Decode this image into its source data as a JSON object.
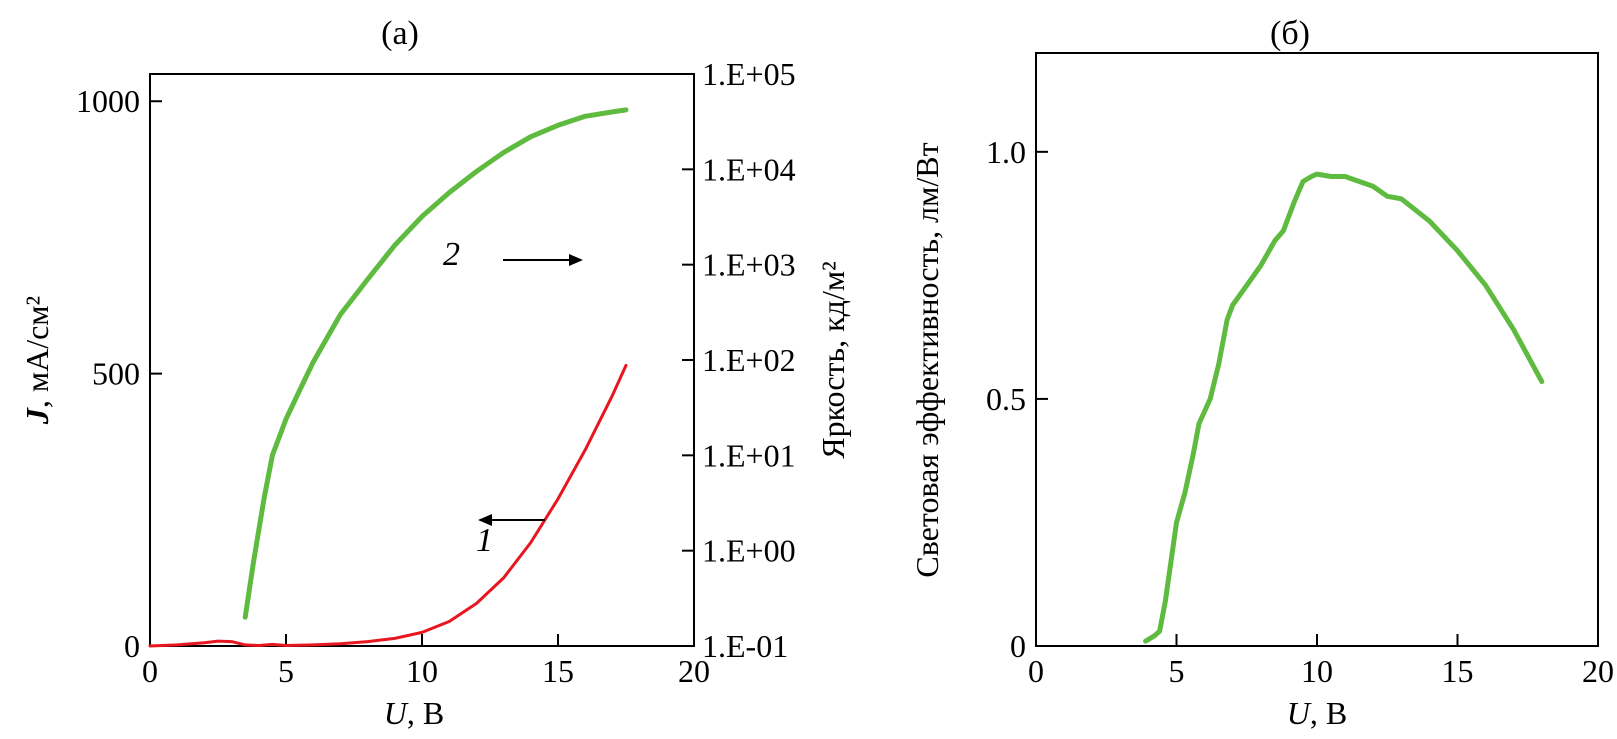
{
  "colors": {
    "current_curve": "#e8161e",
    "luminance_curve": "#5fbb3f",
    "efficiency_curve": "#5fbb3f",
    "axes": "#000000"
  },
  "chart_data": [
    {
      "panel_label": "(a)",
      "type": "line",
      "xlabel_var": "U",
      "xlabel_unit": ", В",
      "ylabel_var": "J",
      "ylabel_unit": ", мА/см²",
      "y2label": "Яркость, кд/м²",
      "xlim": [
        0,
        20
      ],
      "ylim": [
        0,
        1050
      ],
      "y2_scale": "log",
      "y2lim": [
        0.1,
        100000
      ],
      "x_ticks": [
        "0",
        "5",
        "10",
        "15",
        "20"
      ],
      "y_ticks": [
        "0",
        "500",
        "1000"
      ],
      "y2_ticks": [
        "1.E-01",
        "1.E+00",
        "1.E+01",
        "1.E+02",
        "1.E+03",
        "1.E+04",
        "1.E+05"
      ],
      "annotations": [
        {
          "text": "1",
          "arrow": "left",
          "points_to_axis": "left"
        },
        {
          "text": "2",
          "arrow": "right",
          "points_to_axis": "right"
        }
      ],
      "series": [
        {
          "label": "1",
          "axis": "left",
          "color": "#e8161e",
          "x": [
            0,
            1,
            2,
            2.5,
            3,
            3.5,
            4,
            4.5,
            5,
            6,
            7,
            8,
            9,
            10,
            11,
            12,
            13,
            14,
            15,
            16,
            17,
            17.5
          ],
          "y": [
            0,
            2,
            6,
            9,
            8,
            2,
            1,
            3,
            1,
            2,
            4,
            8,
            14,
            25,
            45,
            78,
            125,
            190,
            270,
            360,
            460,
            515
          ]
        },
        {
          "label": "2",
          "axis": "right",
          "color": "#5fbb3f",
          "x": [
            3.5,
            3.8,
            4.2,
            4.5,
            5,
            5.5,
            6,
            7,
            8,
            9,
            10,
            11,
            12,
            13,
            14,
            15,
            16,
            17,
            17.5
          ],
          "y": [
            0.2,
            0.75,
            3.6,
            10,
            24,
            48,
            95,
            300,
            700,
            1600,
            3200,
            5700,
            9500,
            15000,
            22000,
            29000,
            36000,
            40000,
            42000
          ]
        }
      ]
    },
    {
      "panel_label": "(б)",
      "type": "line",
      "xlabel_var": "U",
      "xlabel_unit": ", В",
      "ylabel": "Световая эффективность, лм/Вт",
      "xlim": [
        0,
        20
      ],
      "ylim": [
        0,
        1.2
      ],
      "x_ticks": [
        "0",
        "5",
        "10",
        "15",
        "20"
      ],
      "y_ticks": [
        "0",
        "0.5",
        "1.0"
      ],
      "series": [
        {
          "color": "#5fbb3f",
          "x": [
            3.9,
            4.2,
            4.4,
            4.6,
            4.8,
            5.0,
            5.3,
            5.6,
            5.8,
            6.2,
            6.5,
            6.8,
            7.0,
            7.5,
            8.0,
            8.5,
            8.8,
            9.2,
            9.5,
            9.8,
            10.0,
            10.5,
            11.0,
            12.0,
            12.5,
            13.0,
            14.0,
            15.0,
            16.0,
            17.0,
            18.0
          ],
          "y": [
            0.01,
            0.02,
            0.03,
            0.09,
            0.17,
            0.25,
            0.31,
            0.39,
            0.45,
            0.5,
            0.57,
            0.66,
            0.69,
            0.73,
            0.77,
            0.82,
            0.84,
            0.9,
            0.94,
            0.95,
            0.955,
            0.95,
            0.95,
            0.93,
            0.91,
            0.905,
            0.86,
            0.8,
            0.73,
            0.64,
            0.535
          ]
        }
      ]
    }
  ]
}
